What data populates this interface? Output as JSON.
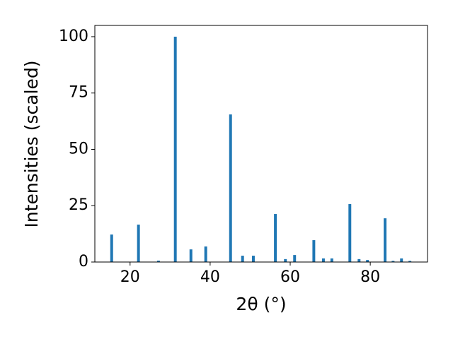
{
  "chart_data": {
    "type": "bar",
    "xlabel": "2θ (°)",
    "ylabel": "Intensities (scaled)",
    "x": [
      15.4,
      22.1,
      27.1,
      31.3,
      35.2,
      38.9,
      45.1,
      48.1,
      50.8,
      56.3,
      58.8,
      61.1,
      65.9,
      68.3,
      70.4,
      74.9,
      77.2,
      79.3,
      83.7,
      85.7,
      87.8,
      89.9
    ],
    "values": [
      12.2,
      16.6,
      0.6,
      100,
      5.6,
      6.9,
      65.5,
      2.8,
      2.8,
      21.3,
      1.3,
      3.1,
      9.7,
      1.6,
      1.6,
      25.7,
      1.3,
      0.9,
      19.4,
      0.5,
      1.6,
      0.5
    ],
    "color": "#1f77b4",
    "xlim": [
      11.2,
      94.3
    ],
    "xticks": [
      20,
      40,
      60,
      80
    ],
    "ylim": [
      0,
      105
    ],
    "yticks": [
      0,
      25,
      50,
      75,
      100
    ]
  }
}
